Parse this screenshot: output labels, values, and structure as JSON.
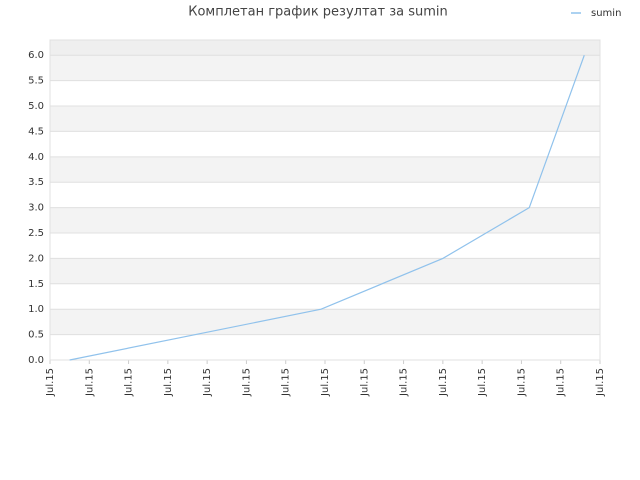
{
  "chart_data": {
    "type": "line",
    "title": "Комплетан график резултат за sumin",
    "x": [
      0.5,
      6.9,
      10.0,
      12.2,
      13.6
    ],
    "series": [
      {
        "name": "sumin",
        "color": "#90c2ec",
        "values": [
          0,
          1,
          2,
          3,
          6
        ]
      }
    ],
    "xlim": [
      0,
      14
    ],
    "xticks": [
      {
        "value": 0,
        "label": "Jul.15"
      },
      {
        "value": 1,
        "label": "Jul.15"
      },
      {
        "value": 2,
        "label": "Jul.15"
      },
      {
        "value": 3,
        "label": "Jul.15"
      },
      {
        "value": 4,
        "label": "Jul.15"
      },
      {
        "value": 5,
        "label": "Jul.15"
      },
      {
        "value": 6,
        "label": "Jul.15"
      },
      {
        "value": 7,
        "label": "Jul.15"
      },
      {
        "value": 8,
        "label": "Jul.15"
      },
      {
        "value": 9,
        "label": "Jul.15"
      },
      {
        "value": 10,
        "label": "Jul.15"
      },
      {
        "value": 11,
        "label": "Jul.15"
      },
      {
        "value": 12,
        "label": "Jul.15"
      },
      {
        "value": 13,
        "label": "Jul.15"
      },
      {
        "value": 14,
        "label": "Jul.15"
      }
    ],
    "ylim": [
      0,
      6.3
    ],
    "yticks": [
      {
        "value": 0,
        "label": "0.0"
      },
      0.5,
      {
        "value": 1,
        "label": "1.0"
      },
      1.5,
      {
        "value": 2,
        "label": "2.0"
      },
      2.5,
      {
        "value": 3,
        "label": "3.0"
      },
      3.5,
      {
        "value": 4,
        "label": "4.0"
      },
      4.5,
      {
        "value": 5,
        "label": "5.0"
      },
      5.5,
      {
        "value": 6,
        "label": "6.0"
      }
    ],
    "grid": true,
    "legend": "upper right"
  }
}
